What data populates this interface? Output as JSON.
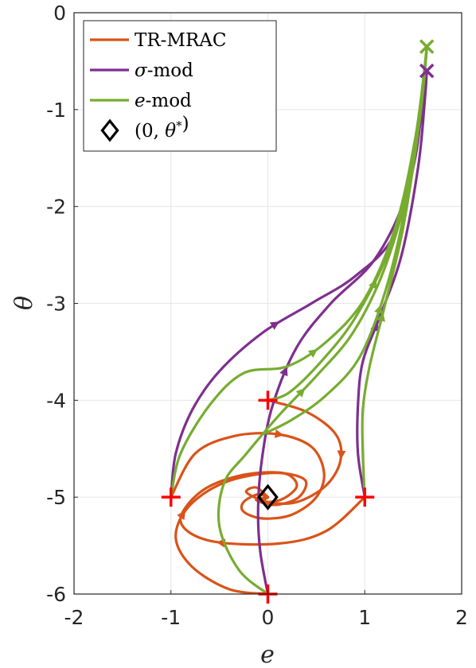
{
  "chart_data": {
    "type": "line",
    "xlabel": "e",
    "ylabel": "θ",
    "xlim": [
      -2,
      2
    ],
    "ylim": [
      -6,
      0
    ],
    "xticks": [
      -2,
      -1,
      0,
      1,
      2
    ],
    "yticks": [
      0,
      -1,
      -2,
      -3,
      -4,
      -5,
      -6
    ],
    "grid": true,
    "legend_position": "top-left",
    "colors": {
      "TR-MRAC": "#d95319",
      "sigma-mod": "#7e2f8e",
      "e-mod": "#77ac30",
      "marker": "#ff0000",
      "equilibrium": "#000000"
    },
    "legend": [
      {
        "key": "TR-MRAC",
        "parts": [
          {
            "t": "TR-MRAC",
            "i": false
          }
        ]
      },
      {
        "key": "sigma-mod",
        "parts": [
          {
            "t": "σ",
            "i": true
          },
          {
            "t": "-mod",
            "i": false
          }
        ]
      },
      {
        "key": "e-mod",
        "parts": [
          {
            "t": "e",
            "i": true
          },
          {
            "t": "-mod",
            "i": false
          }
        ]
      },
      {
        "key": "equilibrium",
        "parts": [
          {
            "t": "(0, ",
            "i": false
          },
          {
            "t": "θ",
            "i": true
          },
          {
            "t": "*",
            "i": false,
            "sup": true
          },
          {
            "t": ")",
            "i": false
          }
        ]
      }
    ],
    "initial_conditions": [
      [
        -1,
        -5
      ],
      [
        0,
        -4
      ],
      [
        1,
        -5
      ],
      [
        0,
        -6
      ]
    ],
    "equilibrium": [
      0,
      -5
    ],
    "end_markers": [
      {
        "series": "e-mod",
        "point": [
          1.64,
          -0.35
        ]
      },
      {
        "series": "sigma-mod",
        "point": [
          1.64,
          -0.6
        ]
      }
    ],
    "series": [
      {
        "name": "TR-MRAC",
        "start": [
          -1,
          -5
        ],
        "points": [
          [
            -1,
            -5
          ],
          [
            -0.75,
            -4.55
          ],
          [
            -0.35,
            -4.37
          ],
          [
            0.1,
            -4.35
          ],
          [
            0.45,
            -4.48
          ],
          [
            0.58,
            -4.75
          ],
          [
            0.5,
            -5.0
          ],
          [
            0.25,
            -5.18
          ],
          [
            -0.05,
            -5.22
          ],
          [
            -0.25,
            -5.15
          ],
          [
            -0.25,
            -5.05
          ],
          [
            -0.1,
            -4.97
          ],
          [
            0,
            -5.0
          ]
        ]
      },
      {
        "name": "TR-MRAC",
        "start": [
          0,
          -4
        ],
        "points": [
          [
            0,
            -4
          ],
          [
            0.4,
            -4.12
          ],
          [
            0.7,
            -4.35
          ],
          [
            0.75,
            -4.62
          ],
          [
            0.6,
            -4.88
          ],
          [
            0.3,
            -5.05
          ],
          [
            0.0,
            -5.05
          ],
          [
            -0.22,
            -4.95
          ],
          [
            -0.12,
            -4.9
          ],
          [
            0,
            -5.0
          ]
        ]
      },
      {
        "name": "TR-MRAC",
        "start": [
          1,
          -5
        ],
        "points": [
          [
            1,
            -5
          ],
          [
            0.6,
            -5.35
          ],
          [
            0.1,
            -5.48
          ],
          [
            -0.6,
            -5.45
          ],
          [
            -0.9,
            -5.25
          ],
          [
            -0.7,
            -4.95
          ],
          [
            -0.3,
            -4.78
          ],
          [
            0.15,
            -4.75
          ],
          [
            0.3,
            -4.88
          ],
          [
            0.15,
            -5.02
          ],
          [
            -0.05,
            -5.05
          ],
          [
            0,
            -5.0
          ]
        ]
      },
      {
        "name": "TR-MRAC",
        "start": [
          0,
          -6
        ],
        "points": [
          [
            0,
            -6
          ],
          [
            -0.4,
            -5.95
          ],
          [
            -0.78,
            -5.72
          ],
          [
            -0.95,
            -5.42
          ],
          [
            -0.82,
            -5.1
          ],
          [
            -0.45,
            -4.85
          ],
          [
            0.05,
            -4.75
          ],
          [
            0.38,
            -4.82
          ],
          [
            0.32,
            -5.0
          ],
          [
            0.08,
            -5.08
          ],
          [
            -0.12,
            -5.03
          ],
          [
            0,
            -5.0
          ]
        ]
      },
      {
        "name": "sigma-mod",
        "start": [
          -1,
          -5
        ],
        "points": [
          [
            -1,
            -5
          ],
          [
            -0.95,
            -4.55
          ],
          [
            -0.78,
            -4.1
          ],
          [
            -0.5,
            -3.7
          ],
          [
            -0.05,
            -3.3
          ],
          [
            0.45,
            -3.0
          ],
          [
            0.9,
            -2.72
          ],
          [
            1.3,
            -2.3
          ],
          [
            1.52,
            -1.5
          ],
          [
            1.6,
            -0.85
          ],
          [
            1.64,
            -0.6
          ]
        ]
      },
      {
        "name": "sigma-mod",
        "start": [
          0,
          -6
        ],
        "points": [
          [
            0,
            -6
          ],
          [
            -0.08,
            -5.55
          ],
          [
            -0.1,
            -5.1
          ],
          [
            -0.06,
            -4.6
          ],
          [
            0.05,
            -4.05
          ],
          [
            0.3,
            -3.45
          ],
          [
            0.65,
            -3.0
          ],
          [
            1.1,
            -2.55
          ],
          [
            1.42,
            -1.9
          ],
          [
            1.58,
            -1.1
          ],
          [
            1.64,
            -0.6
          ]
        ]
      },
      {
        "name": "sigma-mod",
        "start": [
          1,
          -5
        ],
        "points": [
          [
            1,
            -5
          ],
          [
            0.93,
            -4.55
          ],
          [
            0.93,
            -4.05
          ],
          [
            0.98,
            -3.6
          ],
          [
            1.15,
            -3.15
          ],
          [
            1.38,
            -2.5
          ],
          [
            1.55,
            -1.6
          ],
          [
            1.62,
            -0.9
          ],
          [
            1.64,
            -0.6
          ]
        ]
      },
      {
        "name": "e-mod",
        "start": [
          -1,
          -5
        ],
        "points": [
          [
            -1,
            -5
          ],
          [
            -0.9,
            -4.55
          ],
          [
            -0.6,
            -4.05
          ],
          [
            -0.25,
            -3.72
          ],
          [
            0.2,
            -3.65
          ],
          [
            0.6,
            -3.4
          ],
          [
            1.0,
            -2.95
          ],
          [
            1.32,
            -2.2
          ],
          [
            1.52,
            -1.3
          ],
          [
            1.62,
            -0.55
          ],
          [
            1.64,
            -0.35
          ]
        ]
      },
      {
        "name": "e-mod",
        "start": [
          0,
          -4
        ],
        "points": [
          [
            0,
            -4
          ],
          [
            0.22,
            -3.92
          ],
          [
            0.55,
            -3.6
          ],
          [
            0.9,
            -3.15
          ],
          [
            1.25,
            -2.45
          ],
          [
            1.48,
            -1.55
          ],
          [
            1.6,
            -0.75
          ],
          [
            1.64,
            -0.35
          ]
        ]
      },
      {
        "name": "e-mod",
        "start": [
          1,
          -5
        ],
        "points": [
          [
            1,
            -5
          ],
          [
            0.98,
            -4.55
          ],
          [
            0.98,
            -4.1
          ],
          [
            1.05,
            -3.65
          ],
          [
            1.2,
            -3.05
          ],
          [
            1.38,
            -2.3
          ],
          [
            1.52,
            -1.45
          ],
          [
            1.61,
            -0.7
          ],
          [
            1.64,
            -0.35
          ]
        ]
      },
      {
        "name": "e-mod",
        "start": [
          0,
          -6
        ],
        "points": [
          [
            0,
            -6
          ],
          [
            -0.3,
            -5.75
          ],
          [
            -0.5,
            -5.3
          ],
          [
            -0.45,
            -4.85
          ],
          [
            -0.22,
            -4.55
          ],
          [
            0.12,
            -4.15
          ],
          [
            0.5,
            -3.75
          ],
          [
            0.88,
            -3.3
          ],
          [
            1.2,
            -2.65
          ],
          [
            1.45,
            -1.8
          ],
          [
            1.58,
            -1.0
          ],
          [
            1.64,
            -0.35
          ]
        ]
      },
      {
        "name": "e-mod",
        "start": [
          0,
          -4.35
        ],
        "points": [
          [
            -0.05,
            -4.35
          ],
          [
            0.25,
            -4.2
          ],
          [
            0.6,
            -3.95
          ],
          [
            0.95,
            -3.55
          ],
          [
            1.22,
            -2.85
          ],
          [
            1.42,
            -2.0
          ],
          [
            1.56,
            -1.1
          ],
          [
            1.64,
            -0.35
          ]
        ]
      }
    ]
  }
}
